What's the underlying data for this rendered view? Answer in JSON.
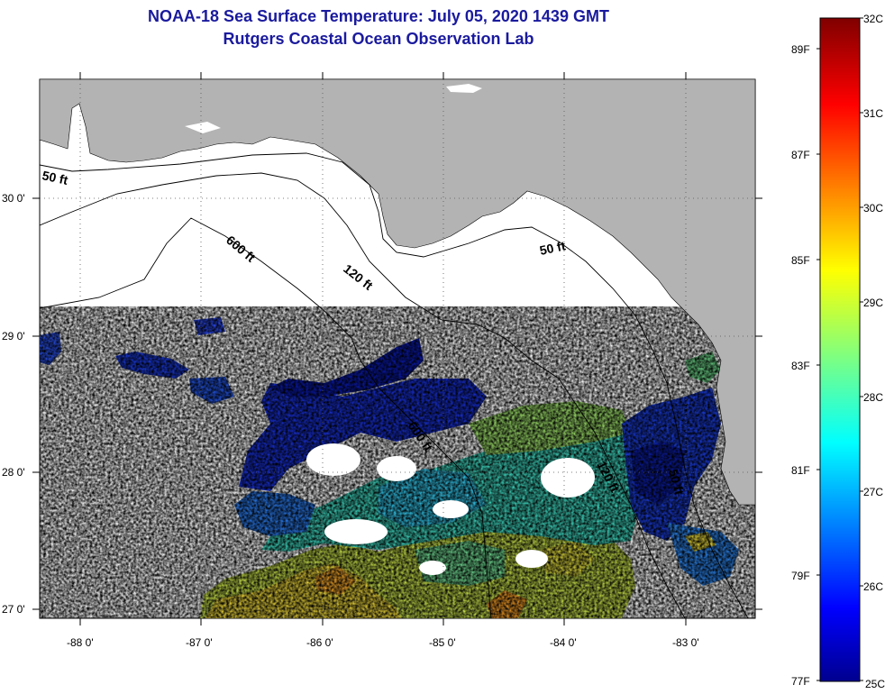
{
  "title": {
    "line1": "NOAA-18 Sea Surface Temperature:  July 05, 2020 1439 GMT",
    "line2": "Rutgers Coastal Ocean Observation Lab"
  },
  "axes": {
    "lon_ticks": [
      "-88 0'",
      "-87 0'",
      "-86 0'",
      "-85 0'",
      "-84 0'",
      "-83 0'"
    ],
    "lat_ticks": [
      "30 0'",
      "29 0'",
      "28 0'",
      "27 0'"
    ]
  },
  "contours": [
    {
      "label": "50 ft"
    },
    {
      "label": "600 ft"
    },
    {
      "label": "120 ft"
    },
    {
      "label": "50 ft"
    },
    {
      "label": "600 ft"
    },
    {
      "label": "120 ft"
    },
    {
      "label": "50 ft"
    }
  ],
  "colorbar": {
    "celsius": [
      "32C",
      "31C",
      "30C",
      "29C",
      "28C",
      "27C",
      "26C",
      "25C"
    ],
    "fahrenheit": [
      "89F",
      "87F",
      "85F",
      "83F",
      "81F",
      "79F",
      "77F"
    ]
  },
  "colors": {
    "title": "#1a1a9e",
    "land": "#b3b3b3",
    "ocean_nodata": "#ffffff",
    "sst_cold": "#000080",
    "sst_warm": "#800000"
  }
}
